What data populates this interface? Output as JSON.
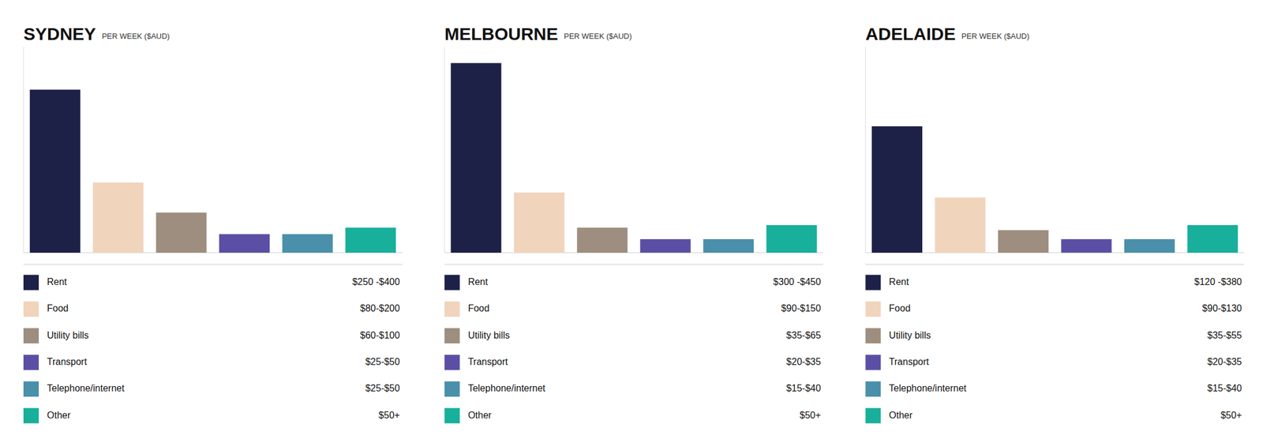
{
  "chart_data": [
    {
      "type": "bar",
      "title": "SYDNEY",
      "subtitle": "PER WEEK ($AUD)",
      "categories": [
        "Rent",
        "Food",
        "Utility bills",
        "Transport",
        "Telephone/internet",
        "Other"
      ],
      "values": [
        325,
        140,
        80,
        37,
        37,
        50
      ],
      "colors": [
        "#1d2148",
        "#f0d4bc",
        "#9e8e80",
        "#5b4fa5",
        "#4a90aa",
        "#18b09a"
      ],
      "range_labels": [
        "$250 -$400",
        "$80-$200",
        "$60-$100",
        "$25-$50",
        "$25-$50",
        "$50+"
      ],
      "ylim": [
        0,
        410
      ],
      "tick_labels": false,
      "grid": false
    },
    {
      "type": "bar",
      "title": "MELBOURNE",
      "subtitle": "PER WEEK ($AUD)",
      "categories": [
        "Rent",
        "Food",
        "Utility bills",
        "Transport",
        "Telephone/internet",
        "Other"
      ],
      "values": [
        378,
        120,
        50,
        27,
        27,
        55
      ],
      "colors": [
        "#1d2148",
        "#f0d4bc",
        "#9e8e80",
        "#5b4fa5",
        "#4a90aa",
        "#18b09a"
      ],
      "range_labels": [
        "$300 -$450",
        "$90-$150",
        "$35-$65",
        "$20-$35",
        "$15-$40",
        "$50+"
      ],
      "ylim": [
        0,
        410
      ],
      "tick_labels": false,
      "grid": false
    },
    {
      "type": "bar",
      "title": "ADELAIDE",
      "subtitle": "PER WEEK ($AUD)",
      "categories": [
        "Rent",
        "Food",
        "Utility bills",
        "Transport",
        "Telephone/internet",
        "Other"
      ],
      "values": [
        252,
        110,
        45,
        27,
        27,
        55
      ],
      "colors": [
        "#1d2148",
        "#f0d4bc",
        "#9e8e80",
        "#5b4fa5",
        "#4a90aa",
        "#18b09a"
      ],
      "range_labels": [
        "$120 -$380",
        "$90-$130",
        "$35-$55",
        "$20-$35",
        "$15-$40",
        "$50+"
      ],
      "ylim": [
        0,
        410
      ],
      "tick_labels": false,
      "grid": false
    }
  ]
}
